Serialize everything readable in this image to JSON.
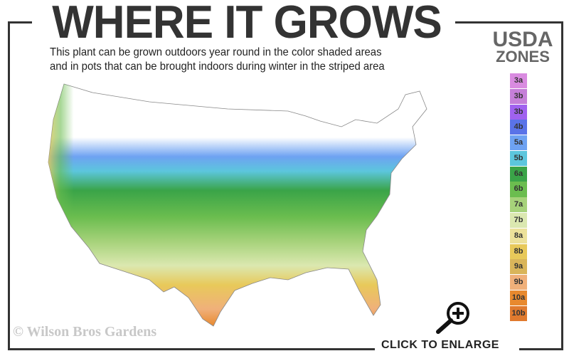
{
  "title": "WHERE IT GROWS",
  "subtitle_lines": [
    "This plant can be grown outdoors year round in the color shaded areas",
    "and in pots that can be brought indoors during winter in the striped area"
  ],
  "legend": {
    "title_line1": "USDA",
    "title_line2": "ZONES",
    "zones": [
      {
        "label": "3a",
        "color": "#d98be0"
      },
      {
        "label": "3b",
        "color": "#c57fd8"
      },
      {
        "label": "3b",
        "color": "#a062ef"
      },
      {
        "label": "4b",
        "color": "#5a73e8"
      },
      {
        "label": "5a",
        "color": "#6ea2f2"
      },
      {
        "label": "5b",
        "color": "#5cc6dd"
      },
      {
        "label": "6a",
        "color": "#3aa448"
      },
      {
        "label": "6b",
        "color": "#6bbd4f"
      },
      {
        "label": "7a",
        "color": "#a6d27a"
      },
      {
        "label": "7b",
        "color": "#dbe8b0"
      },
      {
        "label": "8a",
        "color": "#ece19a"
      },
      {
        "label": "8b",
        "color": "#e8c95a"
      },
      {
        "label": "9a",
        "color": "#d9b55a"
      },
      {
        "label": "9b",
        "color": "#f0b07a"
      },
      {
        "label": "10a",
        "color": "#e8892e"
      },
      {
        "label": "10b",
        "color": "#e07a2e"
      }
    ]
  },
  "copyright": "© Wilson Bros Gardens",
  "enlarge_label": "CLICK TO ENLARGE",
  "icons": {
    "zoom": "magnifier-plus-icon"
  }
}
